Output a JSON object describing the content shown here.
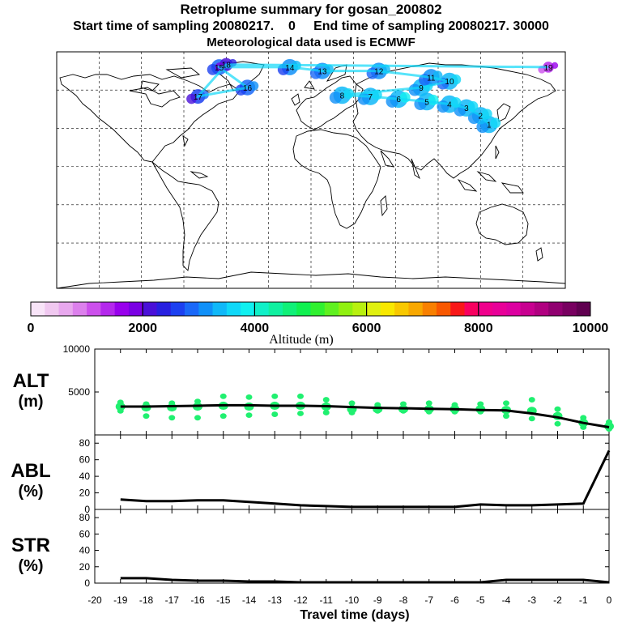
{
  "title": "Retroplume summary for gosan_200802",
  "subtitle": "Start time of sampling 20080217.     0     End time of sampling 20080217. 30000",
  "subtitle_start": "Start time of sampling 20080217.",
  "subtitle_start_hour": "0",
  "subtitle_end": "End time of sampling 20080217. 30000",
  "met_data": "Meteorological data used is ECMWF",
  "colorbar": {
    "label": "Altitude (m)",
    "ticks": [
      "0",
      "2000",
      "4000",
      "6000",
      "8000",
      "10000"
    ],
    "colors": [
      "#f8e4f8",
      "#f0c8f0",
      "#e8a8ee",
      "#dc80ec",
      "#cc50ec",
      "#b428ec",
      "#9800ec",
      "#7a00e4",
      "#4a10d8",
      "#2820e0",
      "#1c40f0",
      "#1a68f8",
      "#1090f8",
      "#10b8f8",
      "#10d8f8",
      "#10f0f0",
      "#10f0c8",
      "#10f0a0",
      "#10f078",
      "#10f050",
      "#30f030",
      "#60f020",
      "#90f010",
      "#b8f010",
      "#e0f010",
      "#f8e800",
      "#f8c800",
      "#f8a800",
      "#f88000",
      "#f85800",
      "#f81818",
      "#f80060",
      "#f0008c",
      "#e80098",
      "#dc00a0",
      "#c80090",
      "#b00080",
      "#900070",
      "#780060",
      "#600050"
    ]
  },
  "map_labels": [
    {
      "text": "1",
      "lon": 126,
      "lat": 33
    },
    {
      "text": "2",
      "lon": 120,
      "lat": 40
    },
    {
      "text": "3",
      "lon": 110,
      "lat": 46
    },
    {
      "text": "4",
      "lon": 98,
      "lat": 49
    },
    {
      "text": "5",
      "lon": 82,
      "lat": 51
    },
    {
      "text": "6",
      "lon": 62,
      "lat": 53
    },
    {
      "text": "7",
      "lon": 42,
      "lat": 55
    },
    {
      "text": "8",
      "lon": 22,
      "lat": 56
    },
    {
      "text": "9",
      "lon": 78,
      "lat": 62
    },
    {
      "text": "10",
      "lon": 98,
      "lat": 67
    },
    {
      "text": "11",
      "lon": 85,
      "lat": 70
    },
    {
      "text": "12",
      "lon": 48,
      "lat": 75
    },
    {
      "text": "13",
      "lon": 8,
      "lat": 75
    },
    {
      "text": "14",
      "lon": -15,
      "lat": 78
    },
    {
      "text": "15",
      "lon": -65,
      "lat": 78
    },
    {
      "text": "16",
      "lon": -45,
      "lat": 62
    },
    {
      "text": "17",
      "lon": -80,
      "lat": 55
    },
    {
      "text": "18",
      "lon": -60,
      "lat": 80
    },
    {
      "text": "19",
      "lon": 168,
      "lat": 78
    }
  ],
  "panels": [
    {
      "label_top": "ALT",
      "label_bottom": "(m)",
      "yticks": [
        "10000",
        "5000"
      ],
      "ylim": [
        0,
        10000
      ]
    },
    {
      "label_top": "ABL",
      "label_bottom": "(%)",
      "yticks": [
        "80",
        "60",
        "40",
        "20",
        "0"
      ],
      "ylim": [
        0,
        90
      ]
    },
    {
      "label_top": "STR",
      "label_bottom": "(%)",
      "yticks": [
        "80",
        "60",
        "40",
        "20",
        "0"
      ],
      "ylim": [
        0,
        90
      ]
    }
  ],
  "x_ticks": [
    "-20",
    "-19",
    "-18",
    "-17",
    "-16",
    "-15",
    "-14",
    "-13",
    "-12",
    "-11",
    "-10",
    "-9",
    "-8",
    "-7",
    "-6",
    "-5",
    "-4",
    "-3",
    "-2",
    "-1",
    "0"
  ],
  "xlabel": "Travel time (days)",
  "chart_data": [
    {
      "type": "line",
      "panel": "ALT",
      "title": "Retroplume summary for gosan_200802",
      "ylabel": "ALT (m)",
      "xlabel": "Travel time (days)",
      "xlim": [
        -20,
        0
      ],
      "ylim": [
        0,
        10000
      ],
      "x": [
        -19,
        -18,
        -17,
        -16,
        -15,
        -14,
        -13,
        -12,
        -11,
        -10,
        -9,
        -8,
        -7,
        -6,
        -5,
        -4,
        -3,
        -2,
        -1,
        0
      ],
      "mean": [
        3300,
        3300,
        3350,
        3400,
        3450,
        3450,
        3400,
        3400,
        3350,
        3250,
        3150,
        3100,
        3050,
        3000,
        2900,
        2850,
        2500,
        2050,
        1400,
        900
      ],
      "clusters": [
        {
          "x": -19,
          "y": [
            3800,
            3300,
            2800
          ]
        },
        {
          "x": -18,
          "y": [
            3600,
            3200,
            2200
          ]
        },
        {
          "x": -17,
          "y": [
            3700,
            3200,
            2000
          ]
        },
        {
          "x": -16,
          "y": [
            3900,
            3300,
            2000
          ]
        },
        {
          "x": -15,
          "y": [
            4500,
            3400,
            2200
          ]
        },
        {
          "x": -14,
          "y": [
            4400,
            3300,
            2300
          ]
        },
        {
          "x": -13,
          "y": [
            4500,
            3400,
            2400
          ]
        },
        {
          "x": -12,
          "y": [
            4500,
            3400,
            2500
          ]
        },
        {
          "x": -11,
          "y": [
            4100,
            3300,
            2600
          ]
        },
        {
          "x": -10,
          "y": [
            3700,
            3000,
            2600
          ]
        },
        {
          "x": -9,
          "y": [
            3500,
            3000,
            2800
          ]
        },
        {
          "x": -8,
          "y": [
            3600,
            3000,
            2800
          ]
        },
        {
          "x": -7,
          "y": [
            3700,
            3000,
            2700
          ]
        },
        {
          "x": -6,
          "y": [
            3500,
            3000,
            2700
          ]
        },
        {
          "x": -5,
          "y": [
            3600,
            3000,
            2700
          ]
        },
        {
          "x": -4,
          "y": [
            3700,
            2900,
            2200
          ]
        },
        {
          "x": -3,
          "y": [
            4100,
            2800,
            1900
          ]
        },
        {
          "x": -2,
          "y": [
            3000,
            2200,
            1300
          ]
        },
        {
          "x": -1,
          "y": [
            2000,
            1400,
            900
          ]
        },
        {
          "x": 0,
          "y": [
            1500,
            1000,
            700
          ]
        }
      ]
    },
    {
      "type": "line",
      "panel": "ABL",
      "ylabel": "ABL (%)",
      "xlim": [
        -20,
        0
      ],
      "ylim": [
        0,
        90
      ],
      "x": [
        -19,
        -18,
        -17,
        -16,
        -15,
        -14,
        -13,
        -12,
        -11,
        -10,
        -9,
        -8,
        -7,
        -6,
        -5,
        -4,
        -3,
        -2,
        -1,
        0
      ],
      "values": [
        12,
        10,
        10,
        11,
        11,
        9,
        7,
        5,
        4,
        3,
        3,
        3,
        3,
        3,
        6,
        5,
        5,
        6,
        7,
        71
      ]
    },
    {
      "type": "line",
      "panel": "STR",
      "ylabel": "STR (%)",
      "xlim": [
        -20,
        0
      ],
      "ylim": [
        0,
        90
      ],
      "x": [
        -19,
        -18,
        -17,
        -16,
        -15,
        -14,
        -13,
        -12,
        -11,
        -10,
        -9,
        -8,
        -7,
        -6,
        -5,
        -4,
        -3,
        -2,
        -1,
        0
      ],
      "values": [
        6,
        6,
        4,
        3,
        3,
        2,
        2,
        1,
        1,
        1,
        1,
        1,
        1,
        1,
        1,
        4,
        4,
        4,
        4,
        1
      ]
    }
  ]
}
